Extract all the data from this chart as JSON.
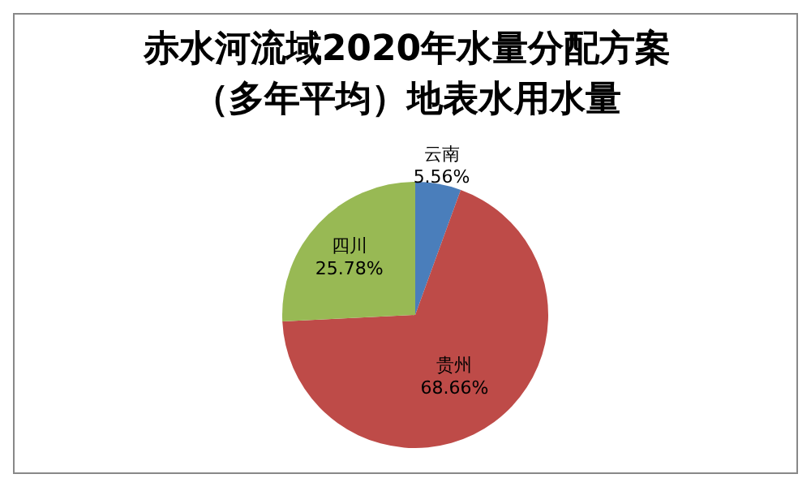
{
  "chart_data": {
    "type": "pie",
    "title": "赤水河流域2020年水量分配方案（多年平均）地表水用水量",
    "categories": [
      "云南",
      "贵州",
      "四川"
    ],
    "values": [
      5.56,
      68.66,
      25.78
    ],
    "colors": [
      "#4a7ebb",
      "#be4b48",
      "#98b954"
    ],
    "value_labels": [
      "5.56%",
      "68.66%",
      "25.78%"
    ],
    "legend": false
  }
}
